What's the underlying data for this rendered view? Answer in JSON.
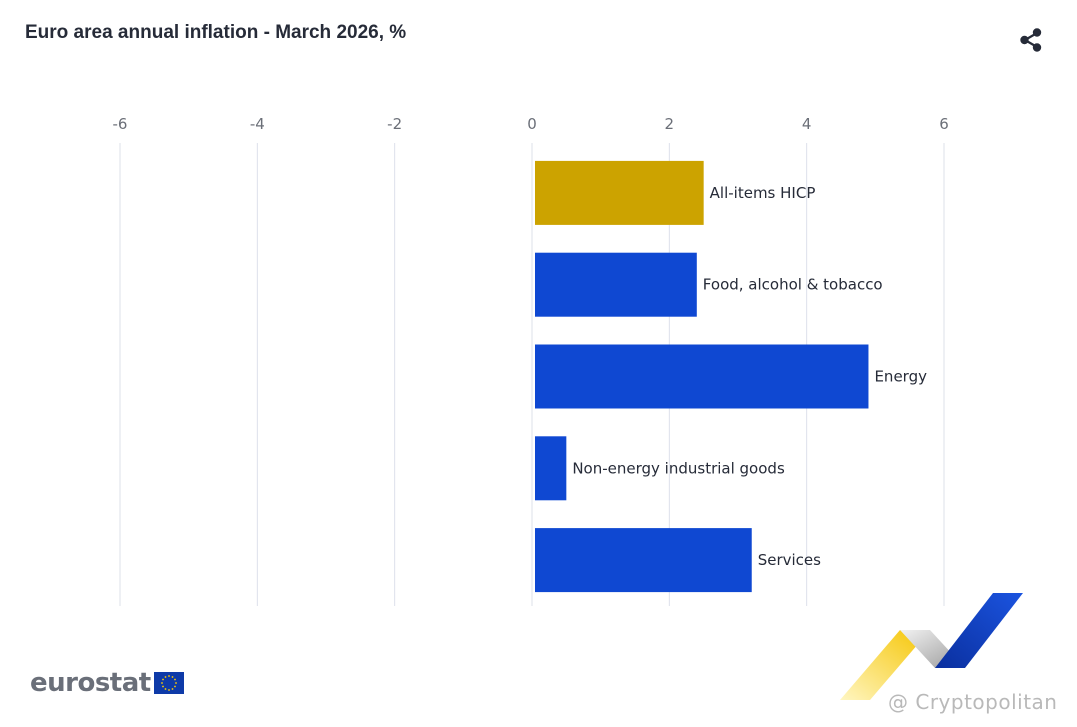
{
  "header": {
    "title": "Euro area annual inflation - March 2026, %",
    "share_icon": "share-icon"
  },
  "logo": {
    "text": "eurostat",
    "flag_icon": "eu-flag-icon"
  },
  "watermark": {
    "text": "@ Cryptopolitan",
    "graphic": "cryptopolitan-logo"
  },
  "colors": {
    "highlight": "#cca300",
    "bar": "#0f48d2",
    "grid": "#dde0ea",
    "text": "#262b38"
  },
  "chart_data": {
    "type": "bar",
    "orientation": "horizontal",
    "title": "Euro area annual inflation - March 2026, %",
    "categories": [
      "All-items HICP",
      "Food, alcohol & tobacco",
      "Energy",
      "Non-energy industrial goods",
      "Services"
    ],
    "values": [
      2.5,
      2.4,
      4.9,
      0.5,
      3.2
    ],
    "bar_colors": [
      "#cca300",
      "#0f48d2",
      "#0f48d2",
      "#0f48d2",
      "#0f48d2"
    ],
    "xlim": [
      -6,
      6
    ],
    "ticks": [
      -6,
      -4,
      -2,
      0,
      2,
      4,
      6
    ],
    "tick_labels": [
      "-6",
      "-4",
      "-2",
      "0",
      "2",
      "4",
      "6"
    ],
    "xaxis_position": "top",
    "grid": true,
    "legend": "none"
  }
}
